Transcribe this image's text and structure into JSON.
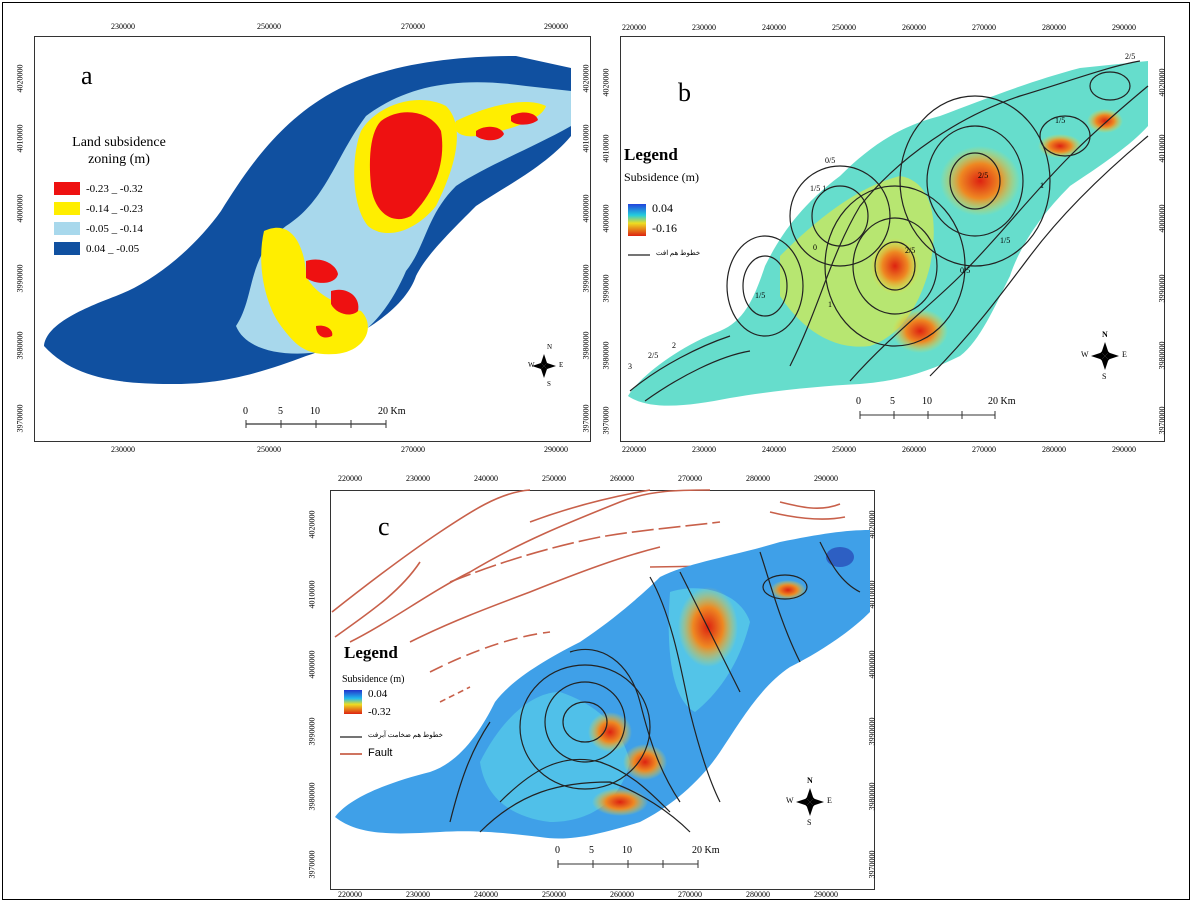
{
  "panel_a": {
    "letter": "a",
    "legend_title": "Land subsidence zoning (m)",
    "legend_items": [
      {
        "label": "-0.23 _ -0.32",
        "color": "#ee1111"
      },
      {
        "label": "-0.14 _ -0.23",
        "color": "#ffee00"
      },
      {
        "label": "-0.05 _ -0.14",
        "color": "#a8d8ec"
      },
      {
        "label": "0.04 _ -0.05",
        "color": "#1050a0"
      }
    ],
    "x_ticks": [
      "230000",
      "250000",
      "270000",
      "290000"
    ],
    "y_ticks": [
      "4020000",
      "4010000",
      "4000000",
      "3990000",
      "3980000",
      "3970000"
    ],
    "scale_labels": [
      "0",
      "5",
      "10",
      "20 Km"
    ]
  },
  "panel_b": {
    "letter": "b",
    "legend_title": "Legend",
    "legend_subtitle": "Subsidence (m)",
    "ramp_high": "0.04",
    "ramp_low": "-0.16",
    "line_label": "خطوط هم افت",
    "x_ticks": [
      "220000",
      "230000",
      "240000",
      "250000",
      "260000",
      "270000",
      "280000",
      "290000"
    ],
    "y_ticks": [
      "4020000",
      "4010000",
      "4000000",
      "3990000",
      "3980000",
      "3970000"
    ],
    "scale_labels": [
      "0",
      "5",
      "10",
      "20 Km"
    ],
    "contour_labels": [
      "2/5",
      "1/5",
      "1",
      "0/5",
      "0",
      "1/5 1",
      "2/5",
      "1/5",
      "1",
      "2/5",
      "3",
      "2/5",
      "2",
      "1/5",
      "0/5"
    ]
  },
  "panel_c": {
    "letter": "c",
    "legend_title": "Legend",
    "legend_subtitle": "Subsidence (m)",
    "ramp_high": "0.04",
    "ramp_low": "-0.32",
    "line_label": "خطوط هم ضخامت آبرفت",
    "fault_label": "Fault",
    "x_ticks": [
      "220000",
      "230000",
      "240000",
      "250000",
      "260000",
      "270000",
      "280000",
      "290000"
    ],
    "y_ticks": [
      "4020000",
      "4010000",
      "4000000",
      "3990000",
      "3980000",
      "3970000"
    ],
    "scale_labels": [
      "0",
      "5",
      "10",
      "20 Km"
    ]
  },
  "compass": {
    "n": "N",
    "s": "S",
    "e": "E",
    "w": "W"
  },
  "colors": {
    "fault": "#c8604a",
    "contour": "#222222"
  }
}
